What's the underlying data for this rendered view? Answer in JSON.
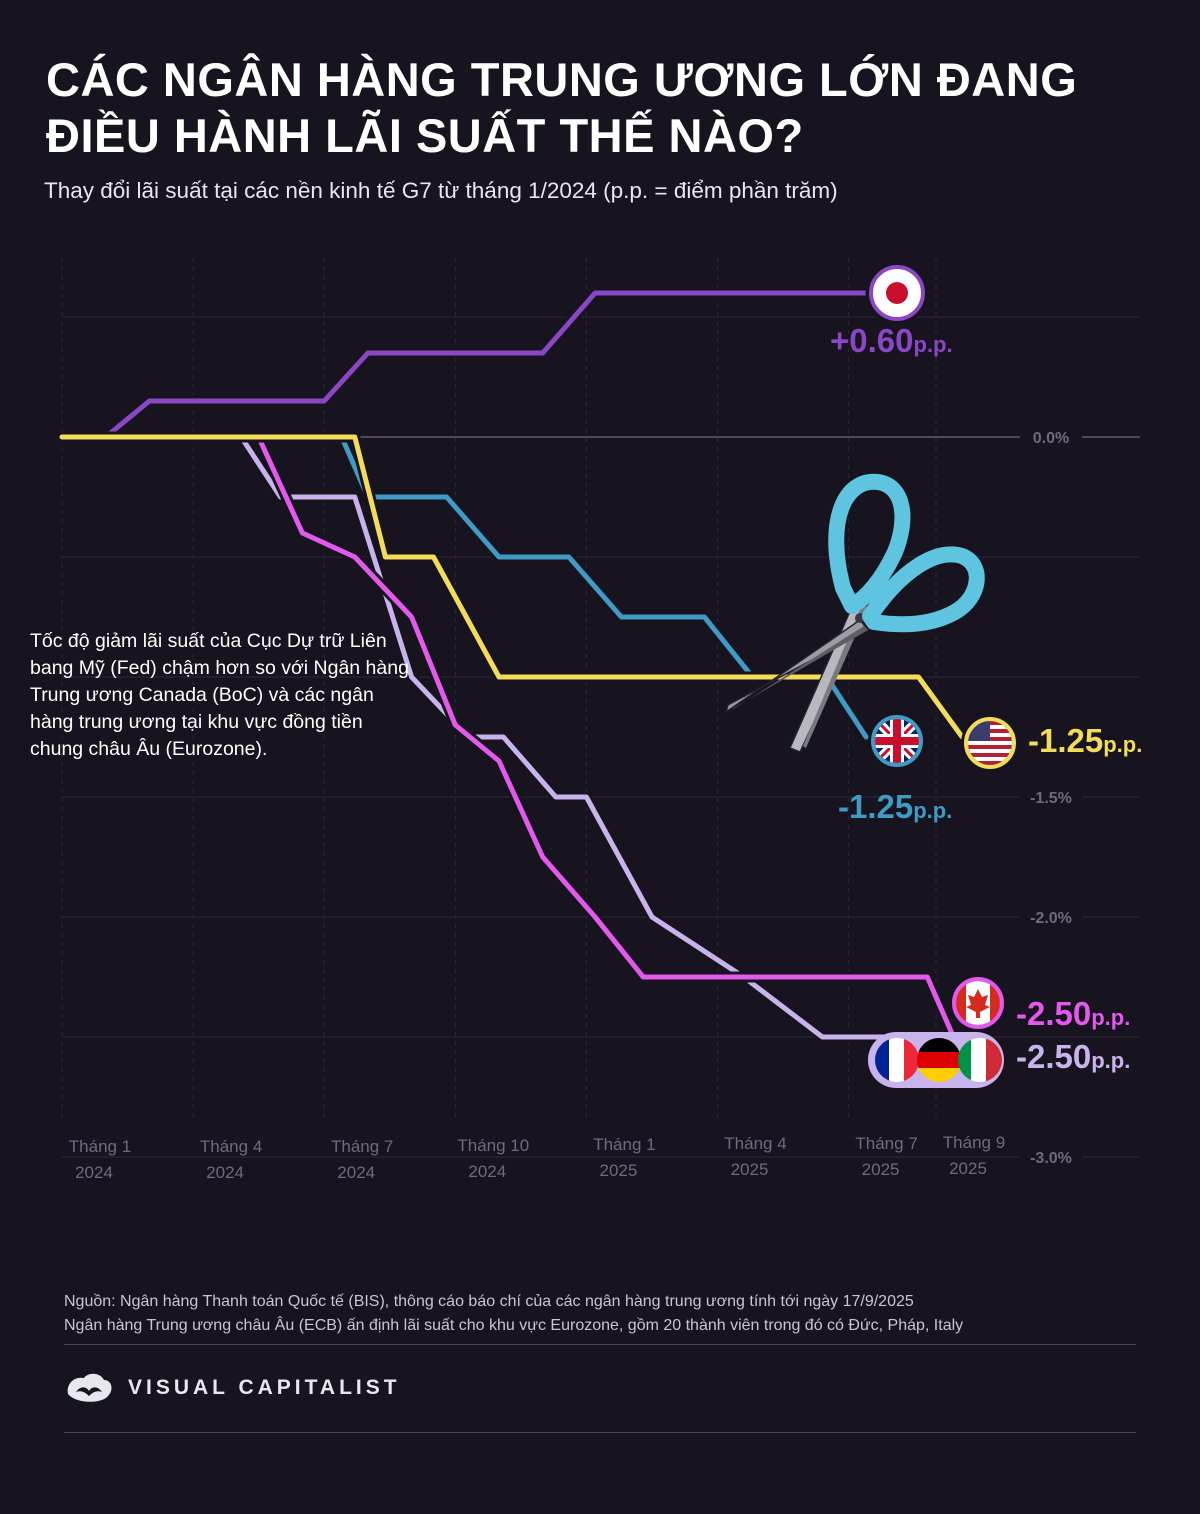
{
  "title": "Các ngân hàng trung ương lớn đang điều hành lãi suất thế nào?",
  "subtitle": "Thay đổi lãi suất tại các nền kinh tế G7 từ tháng 1/2024 (p.p. = điểm phần trăm)",
  "annotation": "Tốc độ giảm lãi suất của Cục Dự trữ Liên bang Mỹ (Fed) chậm hơn so với Ngân hàng Trung ương Canada (BoC) và các ngân hàng trung ương tại khu vực đồng tiền chung châu Âu (Eurozone).",
  "footer": {
    "source_line1": "Nguồn: Ngân hàng Thanh toán Quốc tế (BIS), thông cáo báo chí của các ngân hàng trung ương tính tới ngày 17/9/2025",
    "source_line2": "Ngân hàng Trung ương châu Âu (ECB) ấn định lãi suất cho khu vực Eurozone, gồm 20 thành viên trong đó có Đức, Pháp, Italy",
    "brand": "VISUAL CAPITALIST"
  },
  "chart_data": {
    "type": "line",
    "title": "Các ngân hàng trung ương lớn đang điều hành lãi suất thế nào?",
    "xlabel": "",
    "ylabel": "",
    "x_ticks": [
      {
        "month": 0,
        "month_label": "Tháng 1",
        "year_label": "2024"
      },
      {
        "month": 3,
        "month_label": "Tháng 4",
        "year_label": "2024"
      },
      {
        "month": 6,
        "month_label": "Tháng 7",
        "year_label": "2024"
      },
      {
        "month": 9,
        "month_label": "Tháng 10",
        "year_label": "2024"
      },
      {
        "month": 12,
        "month_label": "Tháng 1",
        "year_label": "2025"
      },
      {
        "month": 15,
        "month_label": "Tháng 4",
        "year_label": "2025"
      },
      {
        "month": 18,
        "month_label": "Tháng 7",
        "year_label": "2025"
      },
      {
        "month": 20,
        "month_label": "Tháng 9",
        "year_label": "2025"
      }
    ],
    "y_tick_labels": [
      {
        "value": 0.0,
        "label": "0.0%"
      },
      {
        "value": -1.5,
        "label": "-1.5%"
      },
      {
        "value": -2.0,
        "label": "-2.0%"
      },
      {
        "value": -3.0,
        "label": "-3.0%"
      }
    ],
    "gridlines": [
      0.5,
      0.0,
      -0.5,
      -1.0,
      -1.5,
      -2.0,
      -2.5,
      -3.0
    ],
    "ylim": [
      -3.0,
      0.75
    ],
    "xlim": [
      0,
      24
    ],
    "series": [
      {
        "name": "Japan",
        "color": "#8b46c5",
        "end_label": "+0.60",
        "unit": "p.p.",
        "points": [
          [
            1,
            0
          ],
          [
            2,
            0.15
          ],
          [
            6,
            0.15
          ],
          [
            7,
            0.35
          ],
          [
            11,
            0.35
          ],
          [
            12.2,
            0.6
          ],
          [
            18.6,
            0.6
          ]
        ]
      },
      {
        "name": "Eurozone",
        "color": "#c9b3ec",
        "end_label": "-2.50",
        "unit": "p.p.",
        "points": [
          [
            0,
            0
          ],
          [
            4.1,
            0
          ],
          [
            5,
            -0.25
          ],
          [
            6.7,
            -0.25
          ],
          [
            8,
            -1.0
          ],
          [
            9.3,
            -1.25
          ],
          [
            10.1,
            -1.25
          ],
          [
            11.3,
            -1.5
          ],
          [
            12,
            -1.5
          ],
          [
            13.5,
            -2.0
          ],
          [
            15.6,
            -2.25
          ],
          [
            17.4,
            -2.5
          ],
          [
            20.1,
            -2.5
          ]
        ]
      },
      {
        "name": "Canada",
        "color": "#e259ec",
        "end_label": "-2.50",
        "unit": "p.p.",
        "points": [
          [
            0,
            0
          ],
          [
            4.5,
            0
          ],
          [
            5.5,
            -0.4
          ],
          [
            6.7,
            -0.5
          ],
          [
            8,
            -0.75
          ],
          [
            9,
            -1.2
          ],
          [
            10,
            -1.35
          ],
          [
            11,
            -1.75
          ],
          [
            12.2,
            -2.0
          ],
          [
            13.3,
            -2.25
          ],
          [
            19.8,
            -2.25
          ],
          [
            20.4,
            -2.5
          ]
        ]
      },
      {
        "name": "UK",
        "color": "#3f9ac5",
        "end_label": "-1.25",
        "unit": "p.p.",
        "points": [
          [
            0,
            0
          ],
          [
            6.4,
            0
          ],
          [
            7,
            -0.25
          ],
          [
            8.8,
            -0.25
          ],
          [
            10,
            -0.5
          ],
          [
            11.6,
            -0.5
          ],
          [
            12.8,
            -0.75
          ],
          [
            14.7,
            -0.75
          ],
          [
            15.8,
            -1.0
          ],
          [
            17.5,
            -1.0
          ],
          [
            18.4,
            -1.25
          ]
        ]
      },
      {
        "name": "USA",
        "color": "#f3dc59",
        "end_label": "-1.25",
        "unit": "p.p.",
        "points": [
          [
            0,
            0
          ],
          [
            6.7,
            0
          ],
          [
            7.4,
            -0.5
          ],
          [
            8.5,
            -0.5
          ],
          [
            10,
            -1.0
          ],
          [
            19.6,
            -1.0
          ],
          [
            20.6,
            -1.25
          ],
          [
            20.9,
            -1.25
          ]
        ]
      }
    ]
  },
  "legend_labels": [
    {
      "name": "Japan",
      "value": "+0.60",
      "unit": "p.p."
    },
    {
      "name": "UK",
      "value": "-1.25",
      "unit": "p.p."
    },
    {
      "name": "USA",
      "value": "-1.25",
      "unit": "p.p."
    },
    {
      "name": "Canada",
      "value": "-2.50",
      "unit": "p.p."
    },
    {
      "name": "Eurozone",
      "value": "-2.50",
      "unit": "p.p."
    }
  ]
}
